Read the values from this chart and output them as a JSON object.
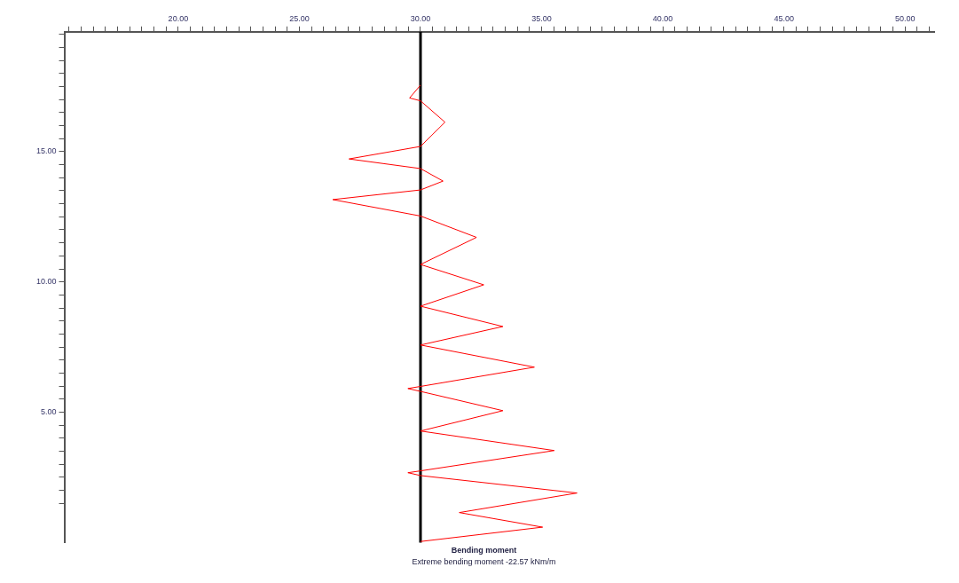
{
  "chart_data": {
    "type": "line",
    "title": "Bending moment",
    "subtitle": "Extreme bending moment -22.57 kNm/m",
    "xlim": [
      15.3,
      51.2
    ],
    "xticks": [
      {
        "value": 15.5,
        "label": null
      },
      {
        "value": 16,
        "label": null
      },
      {
        "value": 16.5,
        "label": null
      },
      {
        "value": 17,
        "label": null
      },
      {
        "value": 17.5,
        "label": null
      },
      {
        "value": 18,
        "label": null
      },
      {
        "value": 18.5,
        "label": null
      },
      {
        "value": 19,
        "label": null
      },
      {
        "value": 19.5,
        "label": null
      },
      {
        "value": 20,
        "label": "20.00"
      },
      {
        "value": 20.5,
        "label": null
      },
      {
        "value": 21,
        "label": null
      },
      {
        "value": 21.5,
        "label": null
      },
      {
        "value": 22,
        "label": null
      },
      {
        "value": 22.5,
        "label": null
      },
      {
        "value": 23,
        "label": null
      },
      {
        "value": 23.5,
        "label": null
      },
      {
        "value": 24,
        "label": null
      },
      {
        "value": 24.5,
        "label": null
      },
      {
        "value": 25,
        "label": "25.00"
      },
      {
        "value": 25.5,
        "label": null
      },
      {
        "value": 26,
        "label": null
      },
      {
        "value": 26.5,
        "label": null
      },
      {
        "value": 27,
        "label": null
      },
      {
        "value": 27.5,
        "label": null
      },
      {
        "value": 28,
        "label": null
      },
      {
        "value": 28.5,
        "label": null
      },
      {
        "value": 29,
        "label": null
      },
      {
        "value": 29.5,
        "label": null
      },
      {
        "value": 30,
        "label": "30.00"
      },
      {
        "value": 30.5,
        "label": null
      },
      {
        "value": 31,
        "label": null
      },
      {
        "value": 31.5,
        "label": null
      },
      {
        "value": 32,
        "label": null
      },
      {
        "value": 32.5,
        "label": null
      },
      {
        "value": 33,
        "label": null
      },
      {
        "value": 33.5,
        "label": null
      },
      {
        "value": 34,
        "label": null
      },
      {
        "value": 34.5,
        "label": null
      },
      {
        "value": 35,
        "label": "35.00"
      },
      {
        "value": 35.5,
        "label": null
      },
      {
        "value": 36,
        "label": null
      },
      {
        "value": 36.5,
        "label": null
      },
      {
        "value": 37,
        "label": null
      },
      {
        "value": 37.5,
        "label": null
      },
      {
        "value": 38,
        "label": null
      },
      {
        "value": 38.5,
        "label": null
      },
      {
        "value": 39,
        "label": null
      },
      {
        "value": 39.5,
        "label": null
      },
      {
        "value": 40,
        "label": "40.00"
      },
      {
        "value": 40.5,
        "label": null
      },
      {
        "value": 41,
        "label": null
      },
      {
        "value": 41.5,
        "label": null
      },
      {
        "value": 42,
        "label": null
      },
      {
        "value": 42.5,
        "label": null
      },
      {
        "value": 43,
        "label": null
      },
      {
        "value": 43.5,
        "label": null
      },
      {
        "value": 44,
        "label": null
      },
      {
        "value": 44.5,
        "label": null
      },
      {
        "value": 45,
        "label": "45.00"
      },
      {
        "value": 45.5,
        "label": null
      },
      {
        "value": 46,
        "label": null
      },
      {
        "value": 46.5,
        "label": null
      },
      {
        "value": 47,
        "label": null
      },
      {
        "value": 47.5,
        "label": null
      },
      {
        "value": 48,
        "label": null
      },
      {
        "value": 48.5,
        "label": null
      },
      {
        "value": 49,
        "label": null
      },
      {
        "value": 49.5,
        "label": null
      },
      {
        "value": 50,
        "label": "50.00"
      },
      {
        "value": 50.5,
        "label": null
      },
      {
        "value": 51,
        "label": null
      }
    ],
    "ylim": [
      0,
      19.6
    ],
    "yticks": [
      {
        "value": 1.5,
        "label": null
      },
      {
        "value": 2,
        "label": null
      },
      {
        "value": 2.5,
        "label": null
      },
      {
        "value": 3,
        "label": null
      },
      {
        "value": 3.5,
        "label": null
      },
      {
        "value": 4,
        "label": null
      },
      {
        "value": 4.5,
        "label": null
      },
      {
        "value": 5,
        "label": "5.00"
      },
      {
        "value": 5.5,
        "label": null
      },
      {
        "value": 6,
        "label": null
      },
      {
        "value": 6.5,
        "label": null
      },
      {
        "value": 7,
        "label": null
      },
      {
        "value": 7.5,
        "label": null
      },
      {
        "value": 8,
        "label": null
      },
      {
        "value": 8.5,
        "label": null
      },
      {
        "value": 9,
        "label": null
      },
      {
        "value": 9.5,
        "label": null
      },
      {
        "value": 10,
        "label": "10.00"
      },
      {
        "value": 10.5,
        "label": null
      },
      {
        "value": 11,
        "label": null
      },
      {
        "value": 11.5,
        "label": null
      },
      {
        "value": 12,
        "label": null
      },
      {
        "value": 12.5,
        "label": null
      },
      {
        "value": 13,
        "label": null
      },
      {
        "value": 13.5,
        "label": null
      },
      {
        "value": 14,
        "label": null
      },
      {
        "value": 14.5,
        "label": null
      },
      {
        "value": 15,
        "label": "15.00"
      },
      {
        "value": 15.5,
        "label": null
      },
      {
        "value": 16,
        "label": null
      },
      {
        "value": 16.5,
        "label": null
      },
      {
        "value": 17,
        "label": null
      },
      {
        "value": 17.5,
        "label": null
      },
      {
        "value": 18,
        "label": null
      },
      {
        "value": 18.5,
        "label": null
      },
      {
        "value": 19,
        "label": null
      },
      {
        "value": 19.5,
        "label": null
      }
    ],
    "grid": false,
    "legend": false,
    "ref_lines": [
      {
        "axis": "x",
        "value": 30,
        "color": "#000000"
      }
    ],
    "series": [
      {
        "color": "#ff0000",
        "x": [
          30,
          29.55,
          30,
          31.01,
          30,
          27.05,
          30,
          30.93,
          30,
          26.38,
          30,
          32.31,
          30,
          32.61,
          30,
          33.4,
          30,
          34.7,
          30,
          29.48,
          30,
          33.4,
          30,
          35.52,
          30,
          29.48,
          30,
          36.46,
          31.6,
          35.04,
          30
        ],
        "values": [
          17.55,
          17.06,
          16.95,
          16.13,
          15.2,
          14.72,
          14.35,
          13.87,
          13.53,
          13.16,
          12.53,
          11.71,
          10.67,
          9.89,
          9.07,
          8.29,
          7.58,
          6.73,
          5.99,
          5.91,
          5.8,
          5.06,
          4.28,
          3.53,
          2.75,
          2.68,
          2.57,
          1.9,
          1.15,
          0.59,
          0.04
        ]
      }
    ]
  }
}
